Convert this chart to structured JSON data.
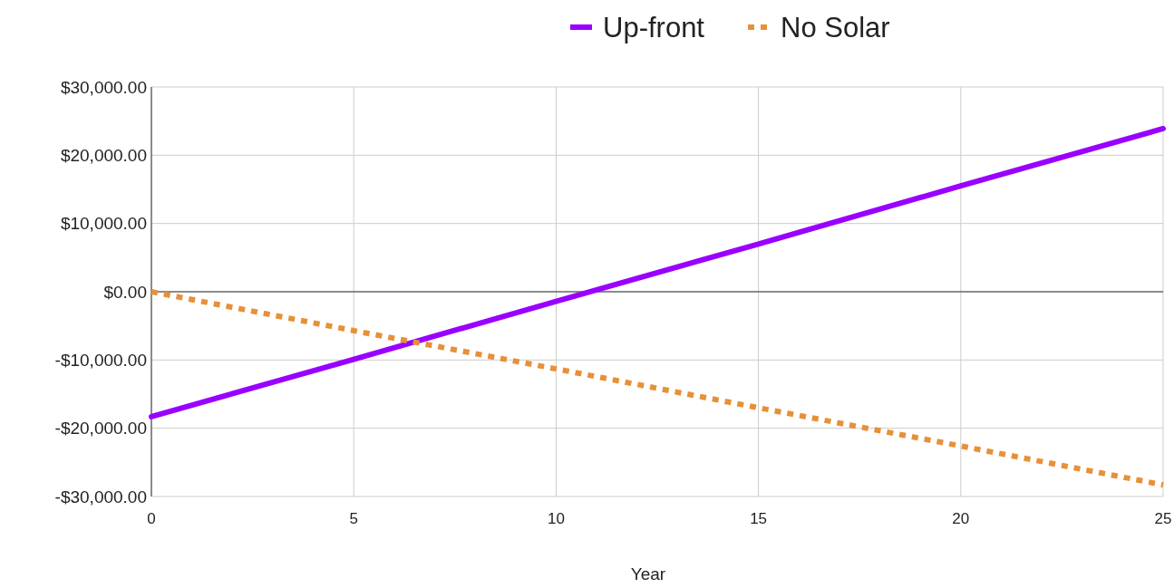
{
  "chart_data": {
    "type": "line",
    "xlabel": "Year",
    "x": [
      0,
      5,
      10,
      15,
      20,
      25
    ],
    "series": [
      {
        "name": "Up-front",
        "color": "#9900ff",
        "line_style": "solid",
        "values": [
          -18300,
          -9900,
          -1400,
          7000,
          15500,
          23900
        ]
      },
      {
        "name": "No Solar",
        "color": "#e69138",
        "line_style": "dotted",
        "values": [
          0,
          -5700,
          -11300,
          -17000,
          -22600,
          -28300
        ]
      }
    ],
    "xlim": [
      0,
      25
    ],
    "xticks": [
      0,
      5,
      10,
      15,
      20,
      25
    ],
    "ylim": [
      -30000,
      30000
    ],
    "yticks": [
      {
        "value": -30000,
        "label": "-$30,000.00"
      },
      {
        "value": -20000,
        "label": "-$20,000.00"
      },
      {
        "value": -10000,
        "label": "-$10,000.00"
      },
      {
        "value": 0,
        "label": "$0.00"
      },
      {
        "value": 10000,
        "label": "$10,000.00"
      },
      {
        "value": 20000,
        "label": "$20,000.00"
      },
      {
        "value": 30000,
        "label": "$30,000.00"
      }
    ],
    "grid": true,
    "legend": "top",
    "marker": "none"
  }
}
